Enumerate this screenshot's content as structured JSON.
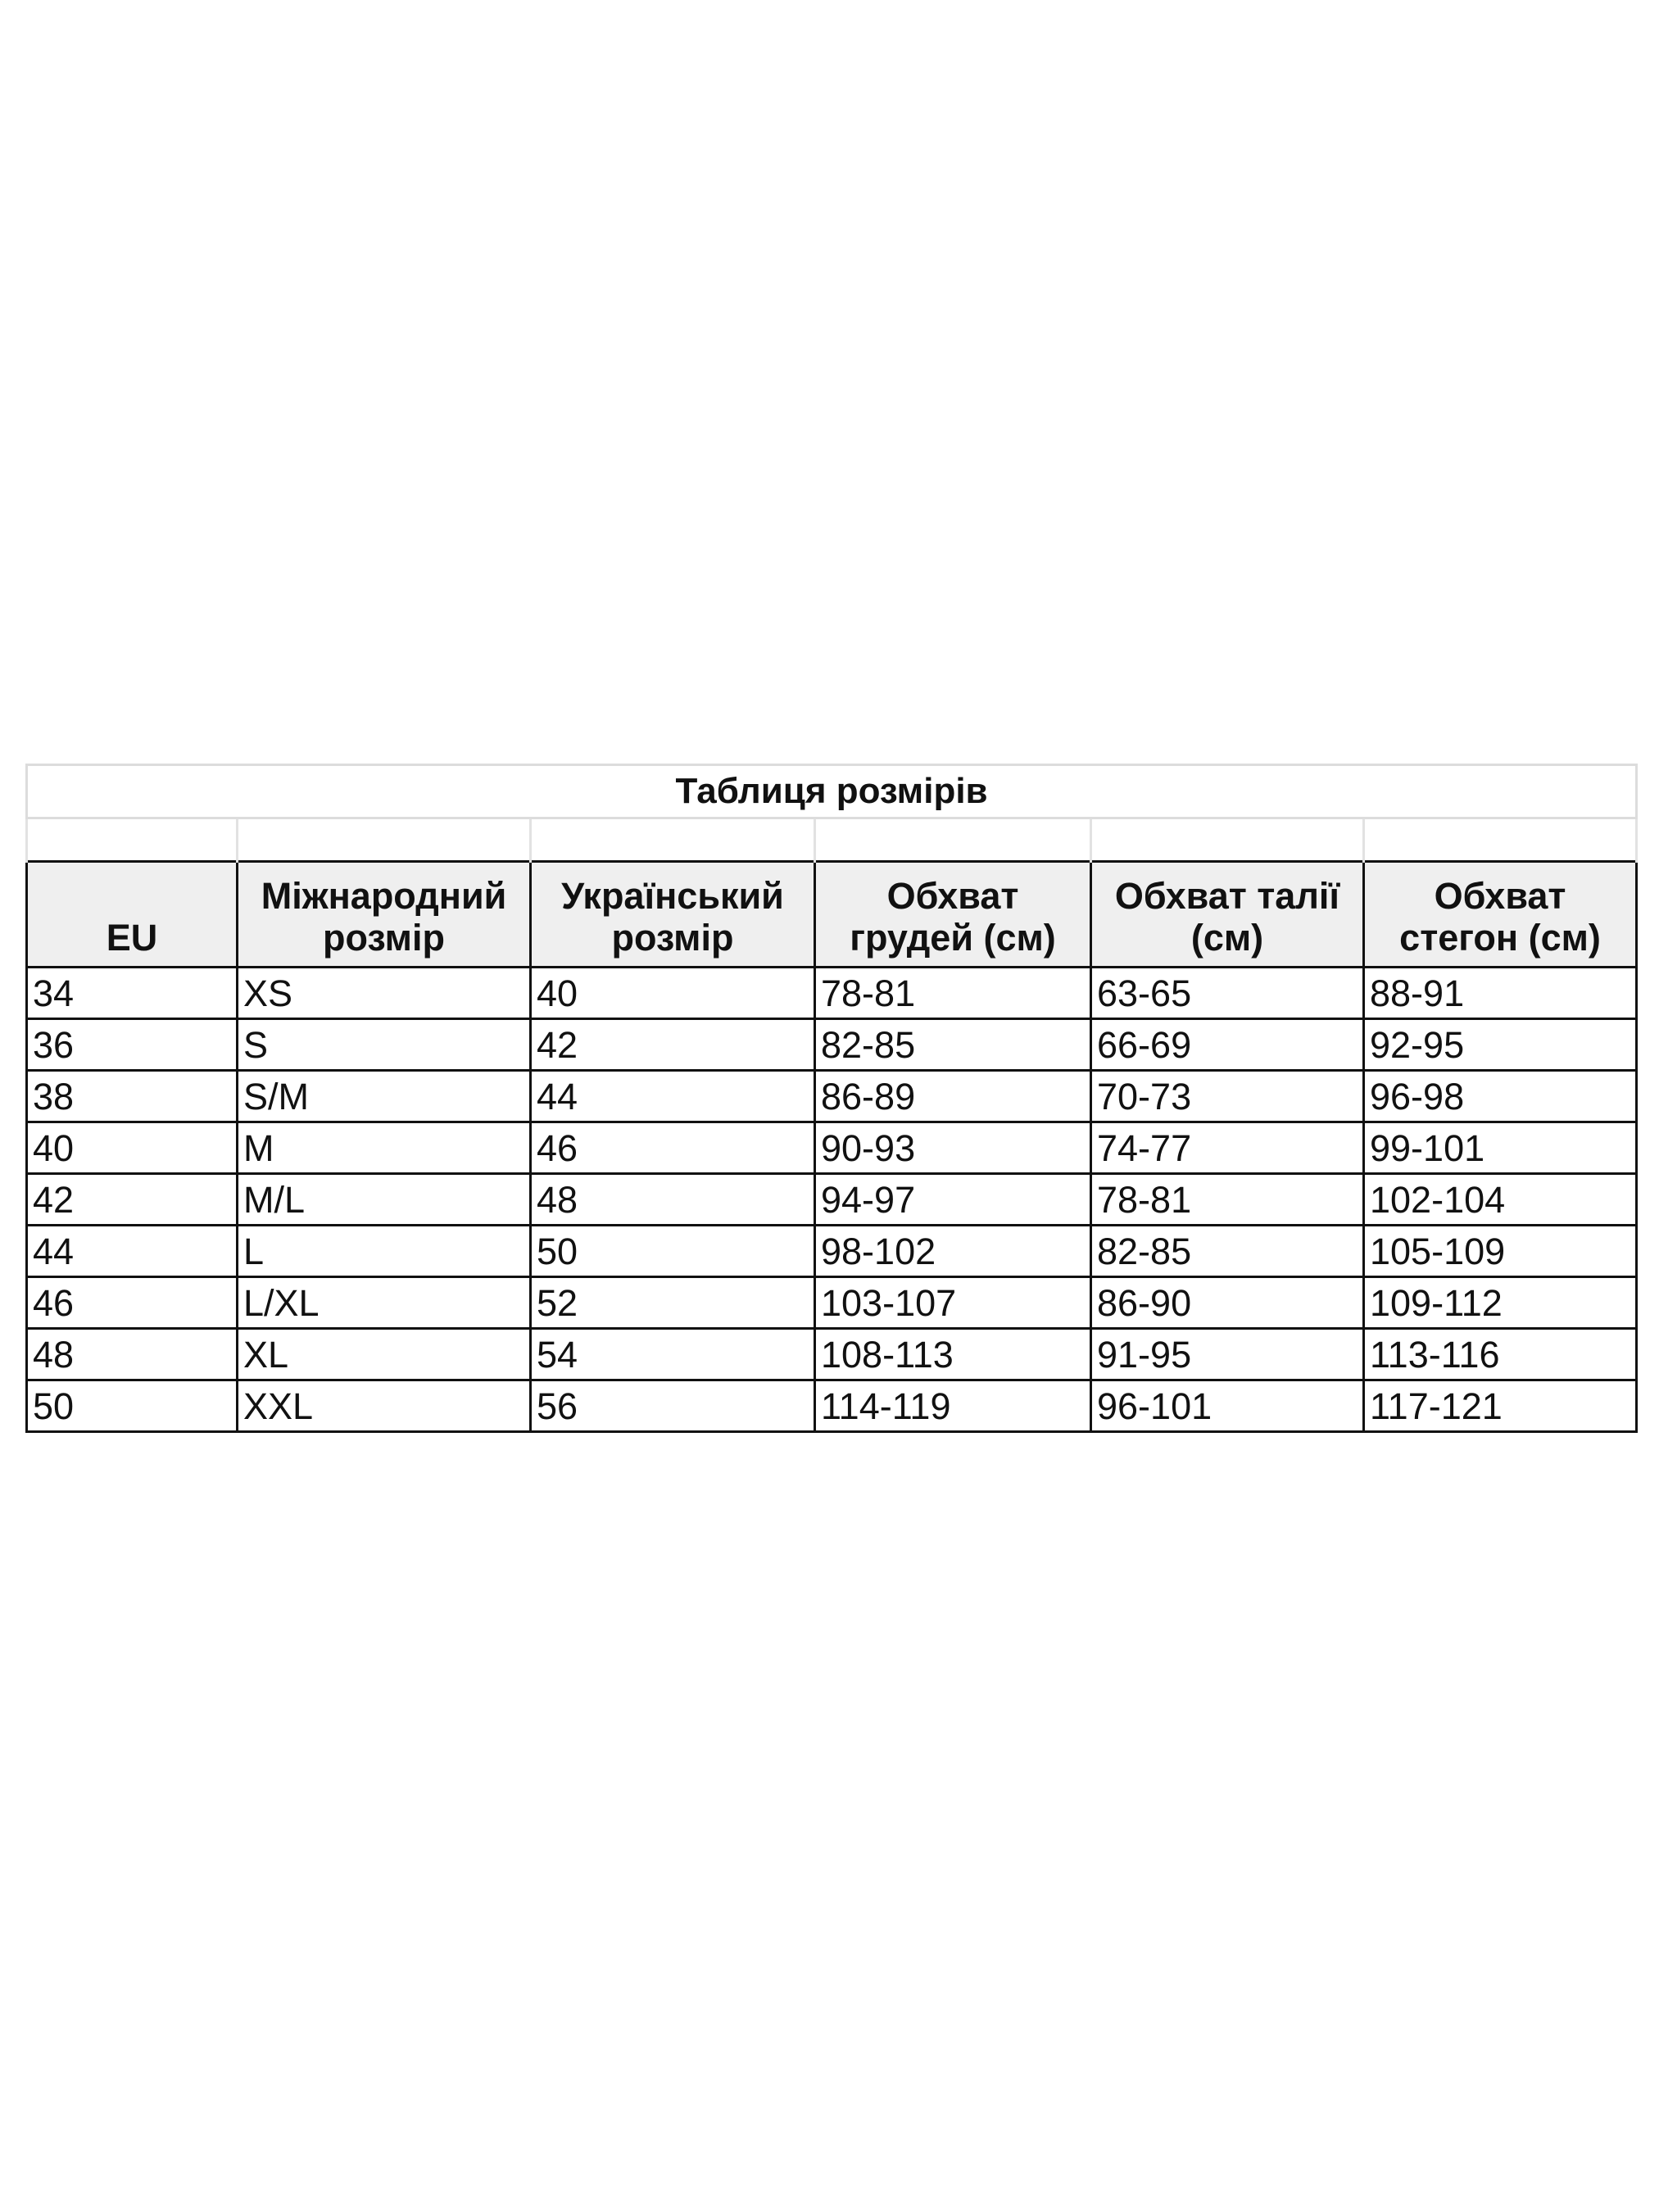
{
  "title": "Таблиця розмірів",
  "headers": [
    "EU",
    "Міжнародний розмір",
    "Український розмір",
    "Обхват грудей (см)",
    "Обхват талії (см)",
    "Обхват стегон (см)"
  ],
  "rows": [
    [
      "34",
      "XS",
      "40",
      "78-81",
      "63-65",
      "88-91"
    ],
    [
      "36",
      "S",
      "42",
      "82-85",
      "66-69",
      "92-95"
    ],
    [
      "38",
      "S/M",
      "44",
      "86-89",
      "70-73",
      "96-98"
    ],
    [
      "40",
      "M",
      "46",
      "90-93",
      "74-77",
      "99-101"
    ],
    [
      "42",
      "M/L",
      "48",
      "94-97",
      "78-81",
      "102-104"
    ],
    [
      "44",
      "L",
      "50",
      "98-102",
      "82-85",
      "105-109"
    ],
    [
      "46",
      "L/XL",
      "52",
      "103-107",
      "86-90",
      "109-112"
    ],
    [
      "48",
      "XL",
      "54",
      "108-113",
      "91-95",
      "113-116"
    ],
    [
      "50",
      "XXL",
      "56",
      "114-119",
      "96-101",
      "117-121"
    ]
  ],
  "colors": {
    "header_bg": "#efefef",
    "grid": "#111111",
    "light_grid": "#dcdcdc"
  }
}
